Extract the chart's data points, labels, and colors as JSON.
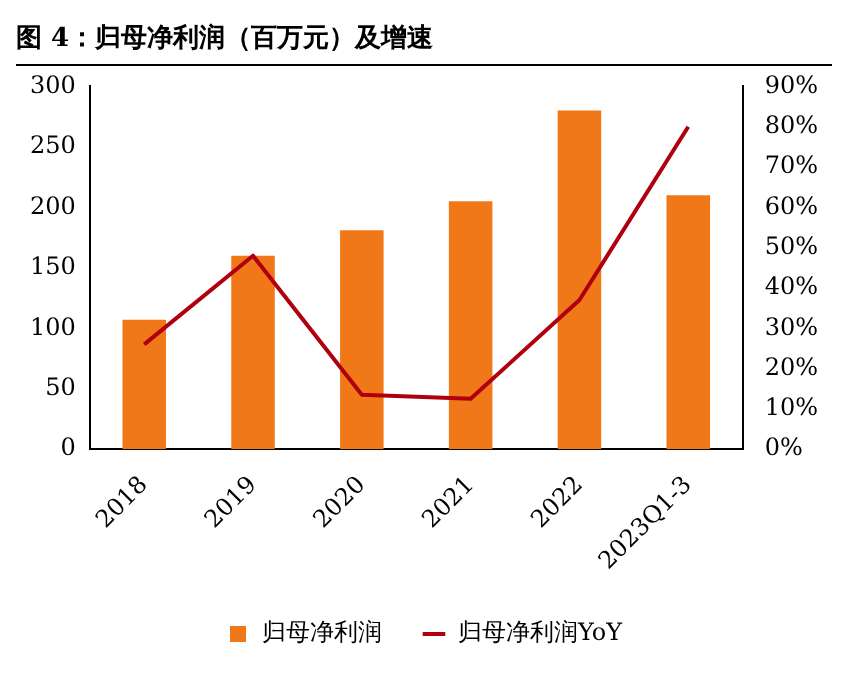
{
  "chart_data": {
    "type": "bar",
    "title": "图 4：归母净利润（百万元）及增速",
    "categories": [
      "2018",
      "2019",
      "2020",
      "2021",
      "2022",
      "2023Q1-3"
    ],
    "series": [
      {
        "name": "归母净利润",
        "color": "#f07818",
        "values": [
          107,
          160,
          181,
          205,
          280,
          210
        ]
      },
      {
        "name": "归母净利润YoY",
        "type": "line",
        "color": "#b00010",
        "axis": "y2",
        "values": [
          26,
          48,
          13.5,
          12.5,
          37,
          80
        ]
      }
    ],
    "ylim": [
      0,
      300
    ],
    "yticks": [
      0,
      50,
      100,
      150,
      200,
      250,
      300
    ],
    "y2lim": [
      0,
      90
    ],
    "y2ticks": [
      {
        "value": 0,
        "label": "0%"
      },
      {
        "value": 10,
        "label": "10%"
      },
      {
        "value": 20,
        "label": "20%"
      },
      {
        "value": 30,
        "label": "30%"
      },
      {
        "value": 40,
        "label": "40%"
      },
      {
        "value": 50,
        "label": "50%"
      },
      {
        "value": 60,
        "label": "60%"
      },
      {
        "value": 70,
        "label": "70%"
      },
      {
        "value": 80,
        "label": "80%"
      },
      {
        "value": 90,
        "label": "90%"
      }
    ],
    "grid": false,
    "legend": "bottom",
    "marker": "none",
    "line_style": "solid"
  }
}
